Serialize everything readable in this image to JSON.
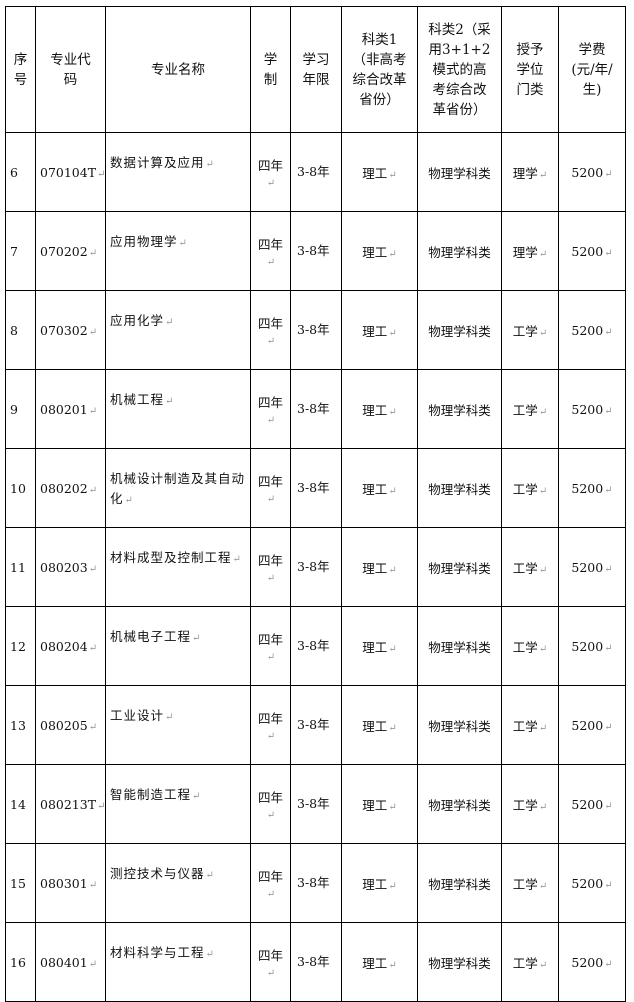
{
  "headers": {
    "seq": "序号",
    "code": "专业代码",
    "name": "专业名称",
    "system": "学制",
    "years": "学习年限",
    "cat1": "科类1（非高考综合改革省份）",
    "cat2": "科类2（采用3+1+2模式的高考综合改革省份）",
    "degree": "授予学位门类",
    "fee": "学费(元/年/生)"
  },
  "rows": [
    {
      "seq": "6",
      "code": "070104T",
      "name": "数据计算及应用",
      "system": "四年",
      "years": "3-8年",
      "cat1": "理工",
      "cat2": "物理学科类",
      "degree": "理学",
      "fee": "5200"
    },
    {
      "seq": "7",
      "code": "070202",
      "name": "应用物理学",
      "system": "四年",
      "years": "3-8年",
      "cat1": "理工",
      "cat2": "物理学科类",
      "degree": "理学",
      "fee": "5200"
    },
    {
      "seq": "8",
      "code": "070302",
      "name": "应用化学",
      "system": "四年",
      "years": "3-8年",
      "cat1": "理工",
      "cat2": "物理学科类",
      "degree": "工学",
      "fee": "5200"
    },
    {
      "seq": "9",
      "code": "080201",
      "name": "机械工程",
      "system": "四年",
      "years": "3-8年",
      "cat1": "理工",
      "cat2": "物理学科类",
      "degree": "工学",
      "fee": "5200"
    },
    {
      "seq": "10",
      "code": "080202",
      "name": "机械设计制造及其自动化",
      "system": "四年",
      "years": "3-8年",
      "cat1": "理工",
      "cat2": "物理学科类",
      "degree": "工学",
      "fee": "5200"
    },
    {
      "seq": "11",
      "code": "080203",
      "name": "材料成型及控制工程",
      "system": "四年",
      "years": "3-8年",
      "cat1": "理工",
      "cat2": "物理学科类",
      "degree": "工学",
      "fee": "5200"
    },
    {
      "seq": "12",
      "code": "080204",
      "name": "机械电子工程",
      "system": "四年",
      "years": "3-8年",
      "cat1": "理工",
      "cat2": "物理学科类",
      "degree": "工学",
      "fee": "5200"
    },
    {
      "seq": "13",
      "code": "080205",
      "name": "工业设计",
      "system": "四年",
      "years": "3-8年",
      "cat1": "理工",
      "cat2": "物理学科类",
      "degree": "工学",
      "fee": "5200"
    },
    {
      "seq": "14",
      "code": "080213T",
      "name": "智能制造工程",
      "system": "四年",
      "years": "3-8年",
      "cat1": "理工",
      "cat2": "物理学科类",
      "degree": "工学",
      "fee": "5200"
    },
    {
      "seq": "15",
      "code": "080301",
      "name": "测控技术与仪器",
      "system": "四年",
      "years": "3-8年",
      "cat1": "理工",
      "cat2": "物理学科类",
      "degree": "工学",
      "fee": "5200"
    },
    {
      "seq": "16",
      "code": "080401",
      "name": "材料科学与工程",
      "system": "四年",
      "years": "3-8年",
      "cat1": "理工",
      "cat2": "物理学科类",
      "degree": "工学",
      "fee": "5200"
    }
  ]
}
